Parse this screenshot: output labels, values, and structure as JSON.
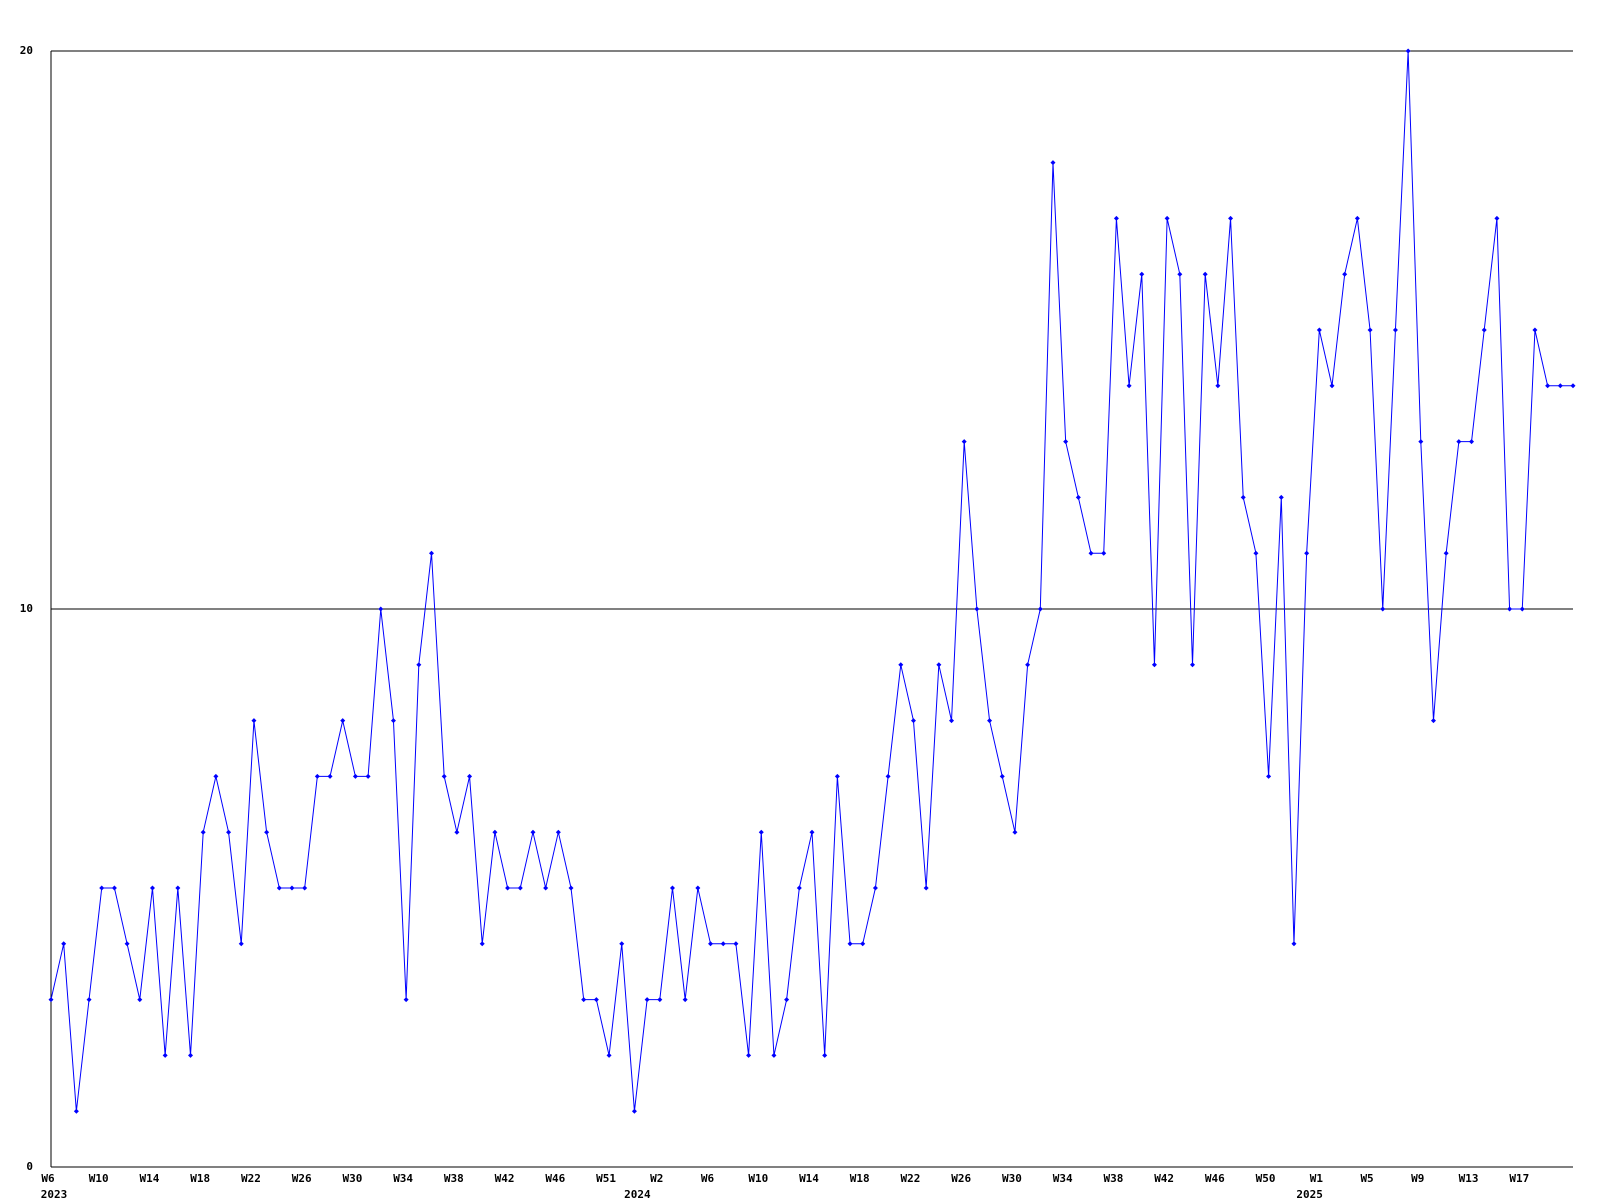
{
  "chart_data": {
    "type": "line",
    "categories": [
      "W6",
      null,
      null,
      null,
      "W10",
      null,
      null,
      null,
      "W14",
      null,
      null,
      null,
      "W18",
      null,
      null,
      null,
      "W22",
      null,
      null,
      null,
      "W26",
      null,
      null,
      null,
      "W30",
      null,
      null,
      null,
      "W34",
      null,
      null,
      null,
      "W38",
      null,
      null,
      null,
      "W42",
      null,
      null,
      null,
      "W46",
      null,
      null,
      null,
      "W51",
      null,
      null,
      null,
      "W2",
      null,
      null,
      null,
      "W6",
      null,
      null,
      null,
      "W10",
      null,
      null,
      null,
      "W14",
      null,
      null,
      null,
      "W18",
      null,
      null,
      null,
      "W22",
      null,
      null,
      null,
      "W26",
      null,
      null,
      null,
      "W30",
      null,
      null,
      null,
      "W34",
      null,
      null,
      null,
      "W38",
      null,
      null,
      null,
      "W42",
      null,
      null,
      null,
      "W46",
      null,
      null,
      null,
      "W50",
      null,
      null,
      null,
      "W1",
      null,
      null,
      null,
      "W5",
      null,
      null,
      null,
      "W9",
      null,
      null,
      null,
      "W13",
      null,
      null,
      null,
      "W17",
      null,
      null,
      null,
      null
    ],
    "year_categories": [
      "2023",
      null,
      null,
      null,
      null,
      null,
      null,
      null,
      null,
      null,
      null,
      null,
      null,
      null,
      null,
      null,
      null,
      null,
      null,
      null,
      null,
      null,
      null,
      null,
      null,
      null,
      null,
      null,
      null,
      null,
      null,
      null,
      null,
      null,
      null,
      null,
      null,
      null,
      null,
      null,
      null,
      null,
      null,
      null,
      null,
      null,
      "2024",
      null,
      null,
      null,
      null,
      null,
      null,
      null,
      null,
      null,
      null,
      null,
      null,
      null,
      null,
      null,
      null,
      null,
      null,
      null,
      null,
      null,
      null,
      null,
      null,
      null,
      null,
      null,
      null,
      null,
      null,
      null,
      null,
      null,
      null,
      null,
      null,
      null,
      null,
      null,
      null,
      null,
      null,
      null,
      null,
      null,
      null,
      null,
      null,
      null,
      null,
      null,
      null,
      "2025",
      null,
      null,
      null,
      null,
      null,
      null,
      null,
      null,
      null,
      null,
      null,
      null,
      null,
      null,
      null,
      null,
      null,
      null,
      null,
      null,
      null
    ],
    "series": [
      {
        "color": "#0000ff",
        "values": [
          3,
          4,
          1,
          3,
          5,
          5,
          4,
          3,
          5,
          2,
          5,
          2,
          6,
          7,
          6,
          4,
          8,
          6,
          5,
          5,
          5,
          7,
          7,
          8,
          7,
          7,
          10,
          8,
          3,
          9,
          11,
          7,
          6,
          7,
          4,
          6,
          5,
          5,
          6,
          5,
          6,
          5,
          3,
          3,
          2,
          4,
          1,
          3,
          3,
          5,
          3,
          5,
          4,
          4,
          4,
          2,
          6,
          2,
          3,
          5,
          6,
          2,
          7,
          4,
          4,
          5,
          7,
          9,
          8,
          5,
          9,
          8,
          13,
          10,
          8,
          7,
          6,
          9,
          10,
          18,
          13,
          12,
          11,
          11,
          17,
          14,
          16,
          9,
          17,
          16,
          9,
          16,
          14,
          17,
          12,
          11,
          7,
          12,
          4,
          11,
          15,
          14,
          16,
          17,
          15,
          10,
          15,
          20,
          13,
          8,
          11,
          13,
          13,
          15,
          17,
          10,
          10,
          15,
          14,
          14,
          14
        ]
      }
    ],
    "ylim": [
      0,
      20
    ],
    "yticks": [
      0,
      10,
      20
    ],
    "grid": true
  }
}
